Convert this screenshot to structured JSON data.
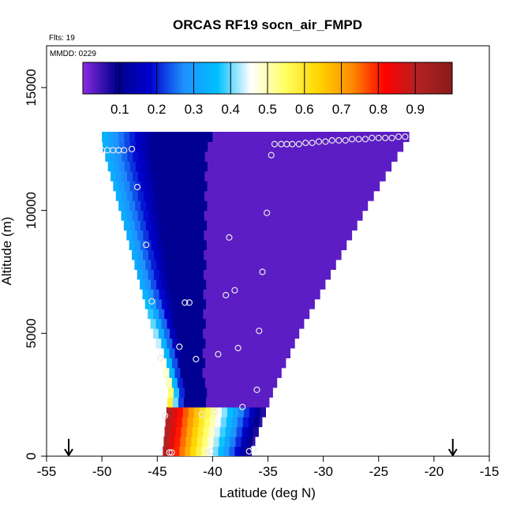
{
  "chart_data": {
    "type": "heatmap",
    "title": "ORCAS RF19 socn_air_FMPD",
    "annotations": {
      "flights": "Flts: 19",
      "date": "MMDD: 0229"
    },
    "xlabel": "Latitude (deg N)",
    "ylabel": "Altitude (m)",
    "xlim": [
      -55,
      -15
    ],
    "ylim": [
      0,
      16700
    ],
    "x_ticks": [
      -55,
      -50,
      -45,
      -40,
      -35,
      -30,
      -25,
      -20,
      -15
    ],
    "x_tick_labels": [
      "-55",
      "-50",
      "-45",
      "-40",
      "-35",
      "-30",
      "-25",
      "-20",
      "-15"
    ],
    "y_ticks": [
      0,
      5000,
      10000,
      15000
    ],
    "y_tick_labels": [
      "0",
      "5000",
      "10000",
      "15000"
    ],
    "colorbar": {
      "range": [
        0,
        1
      ],
      "ticks": [
        0.1,
        0.2,
        0.3,
        0.4,
        0.5,
        0.6,
        0.7,
        0.8,
        0.9
      ],
      "tick_labels": [
        "0.1",
        "0.2",
        "0.3",
        "0.4",
        "0.5",
        "0.6",
        "0.7",
        "0.8",
        "0.9"
      ],
      "colors": [
        "#8a2be2",
        "#00008b",
        "#0000cd",
        "#1e90ff",
        "#00bfff",
        "#ffffff",
        "#ffff66",
        "#ffd700",
        "#ff8c00",
        "#ff0000",
        "#b22222",
        "#8b1a1a"
      ]
    },
    "region": {
      "left_edge": [
        [
          -44.5,
          0
        ],
        [
          -44.0,
          2500
        ],
        [
          -45.5,
          5000
        ],
        [
          -47.0,
          7500
        ],
        [
          -48.5,
          10000
        ],
        [
          -50.0,
          12500
        ]
      ],
      "right_edge": [
        [
          -36.5,
          0
        ],
        [
          -34.5,
          2500
        ],
        [
          -32.0,
          5000
        ],
        [
          -29.0,
          7500
        ],
        [
          -26.0,
          10000
        ],
        [
          -22.0,
          13000
        ]
      ],
      "top_left": [
        -50.2,
        12500
      ],
      "top_right": [
        -22.0,
        13000
      ]
    },
    "sample_points": [
      {
        "lat": -50.0,
        "alt": 12450
      },
      {
        "lat": -49.5,
        "alt": 12450
      },
      {
        "lat": -49.0,
        "alt": 12450
      },
      {
        "lat": -48.5,
        "alt": 12450
      },
      {
        "lat": -48.0,
        "alt": 12450
      },
      {
        "lat": -47.3,
        "alt": 12500
      },
      {
        "lat": -46.8,
        "alt": 10950
      },
      {
        "lat": -46.0,
        "alt": 8600
      },
      {
        "lat": -45.5,
        "alt": 6300
      },
      {
        "lat": -44.7,
        "alt": 4000
      },
      {
        "lat": -44.3,
        "alt": 1650
      },
      {
        "lat": -43.7,
        "alt": 150
      },
      {
        "lat": -43.9,
        "alt": 150
      },
      {
        "lat": -43.0,
        "alt": 4450
      },
      {
        "lat": -42.5,
        "alt": 6250
      },
      {
        "lat": -42.1,
        "alt": 6250
      },
      {
        "lat": -41.5,
        "alt": 3950
      },
      {
        "lat": -41.0,
        "alt": 1700
      },
      {
        "lat": -40.5,
        "alt": 150
      },
      {
        "lat": -40.2,
        "alt": 200
      },
      {
        "lat": -39.8,
        "alt": 1800
      },
      {
        "lat": -39.5,
        "alt": 4150
      },
      {
        "lat": -38.8,
        "alt": 6550
      },
      {
        "lat": -38.5,
        "alt": 8900
      },
      {
        "lat": -38.0,
        "alt": 6750
      },
      {
        "lat": -37.7,
        "alt": 4400
      },
      {
        "lat": -37.3,
        "alt": 2000
      },
      {
        "lat": -36.7,
        "alt": 200
      },
      {
        "lat": -36.3,
        "alt": 300
      },
      {
        "lat": -36.0,
        "alt": 2700
      },
      {
        "lat": -35.8,
        "alt": 5100
      },
      {
        "lat": -35.5,
        "alt": 7500
      },
      {
        "lat": -35.1,
        "alt": 9900
      },
      {
        "lat": -34.7,
        "alt": 12250
      },
      {
        "lat": -34.4,
        "alt": 12700
      },
      {
        "lat": -33.8,
        "alt": 12700
      },
      {
        "lat": -33.3,
        "alt": 12700
      },
      {
        "lat": -32.8,
        "alt": 12700
      },
      {
        "lat": -32.2,
        "alt": 12700
      },
      {
        "lat": -31.6,
        "alt": 12750
      },
      {
        "lat": -31.0,
        "alt": 12750
      },
      {
        "lat": -30.4,
        "alt": 12800
      },
      {
        "lat": -29.8,
        "alt": 12800
      },
      {
        "lat": -29.2,
        "alt": 12850
      },
      {
        "lat": -28.6,
        "alt": 12850
      },
      {
        "lat": -28.0,
        "alt": 12850
      },
      {
        "lat": -27.4,
        "alt": 12900
      },
      {
        "lat": -26.8,
        "alt": 12900
      },
      {
        "lat": -26.2,
        "alt": 12900
      },
      {
        "lat": -25.6,
        "alt": 12950
      },
      {
        "lat": -25.0,
        "alt": 12950
      },
      {
        "lat": -24.4,
        "alt": 12950
      },
      {
        "lat": -23.8,
        "alt": 12950
      },
      {
        "lat": -23.2,
        "alt": 13000
      },
      {
        "lat": -22.6,
        "alt": 13000
      }
    ],
    "arrows": [
      {
        "lat": -53.0
      },
      {
        "lat": -18.3
      }
    ]
  }
}
